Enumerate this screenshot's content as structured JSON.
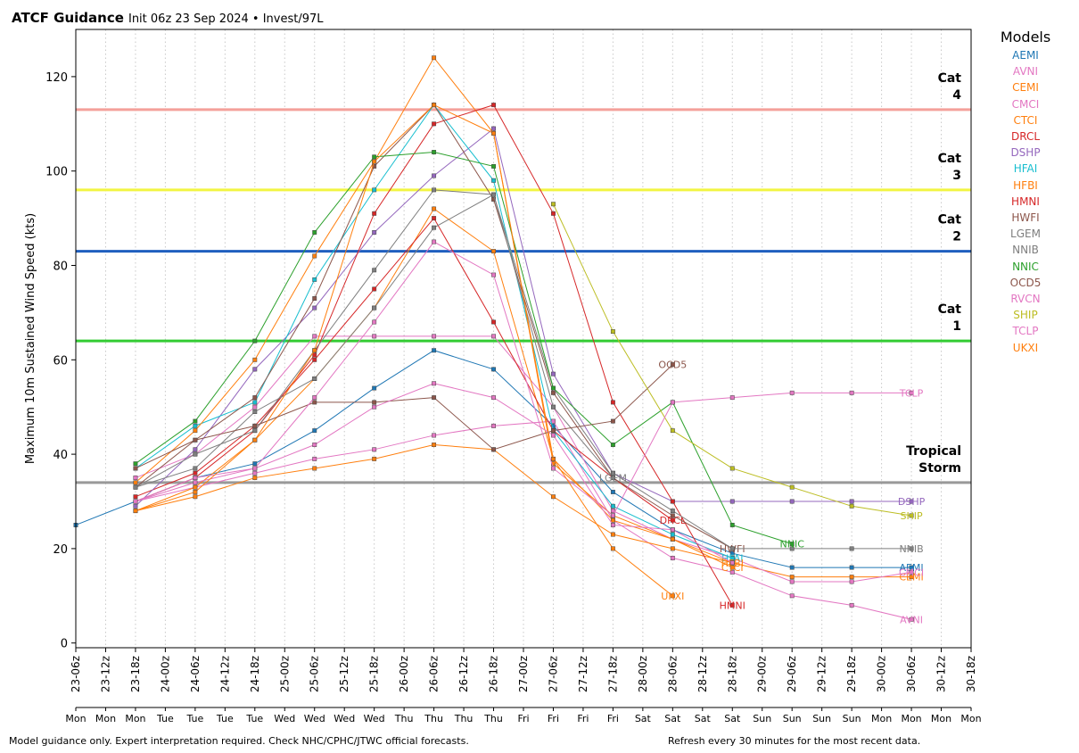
{
  "header": {
    "title": "ATCF Guidance",
    "subtitle": "Init 06z 23 Sep 2024 • Invest/97L"
  },
  "legend": {
    "title": "Models"
  },
  "footer": {
    "left": "Model guidance only. Expert interpretation required. Check NHC/CPHC/JTWC official forecasts.",
    "right": "Refresh every 30 minutes for the most recent data."
  },
  "chart_data": {
    "type": "line",
    "title": "ATCF Guidance",
    "ylabel": "Maximum 10m Sustained Wind Speed (kts)",
    "xlabel": "",
    "ylim": [
      -1,
      130
    ],
    "xlim": [
      "23-06z",
      "30-18z"
    ],
    "y_ticks": [
      0,
      20,
      40,
      60,
      80,
      100,
      120
    ],
    "x_ticks": [
      "23-06z",
      "23-12z",
      "23-18z",
      "24-00z",
      "24-06z",
      "24-12z",
      "24-18z",
      "25-00z",
      "25-06z",
      "25-12z",
      "25-18z",
      "26-00z",
      "26-06z",
      "26-12z",
      "26-18z",
      "27-00z",
      "27-06z",
      "27-12z",
      "27-18z",
      "28-00z",
      "28-06z",
      "28-12z",
      "28-18z",
      "29-00z",
      "29-06z",
      "29-12z",
      "29-18z",
      "30-00z",
      "30-06z",
      "30-12z",
      "30-18z"
    ],
    "day_labels": [
      "Mon",
      "Mon",
      "Mon",
      "Tue",
      "Tue",
      "Tue",
      "Tue",
      "Wed",
      "Wed",
      "Wed",
      "Wed",
      "Thu",
      "Thu",
      "Thu",
      "Thu",
      "Fri",
      "Fri",
      "Fri",
      "Fri",
      "Sat",
      "Sat",
      "Sat",
      "Sat",
      "Sun",
      "Sun",
      "Sun",
      "Sun",
      "Mon",
      "Mon",
      "Mon",
      "Mon"
    ],
    "grid": "vertical dotted",
    "legend_position": "right",
    "thresholds": [
      {
        "label": "Cat 4",
        "value": 113,
        "color": "#f4a09a"
      },
      {
        "label": "Cat 3",
        "value": 96,
        "color": "#f2f542"
      },
      {
        "label": "Cat 2",
        "value": 83,
        "color": "#1f5fbf"
      },
      {
        "label": "Cat 1",
        "value": 64,
        "color": "#33cc33"
      },
      {
        "label": "Tropical Storm",
        "value": 34,
        "color": "#999999"
      }
    ],
    "series": [
      {
        "name": "AEMI",
        "color": "#1f77b4",
        "points": [
          [
            0,
            25
          ],
          [
            2,
            30
          ],
          [
            4,
            35
          ],
          [
            6,
            38
          ],
          [
            8,
            45
          ],
          [
            10,
            54
          ],
          [
            12,
            62
          ],
          [
            14,
            58
          ],
          [
            16,
            46
          ],
          [
            18,
            32
          ],
          [
            20,
            24
          ],
          [
            22,
            19
          ],
          [
            24,
            16
          ],
          [
            26,
            16
          ],
          [
            28,
            16
          ]
        ],
        "end_label": "AEMI"
      },
      {
        "name": "AVNI",
        "color": "#e377c2",
        "points": [
          [
            2,
            30
          ],
          [
            4,
            33
          ],
          [
            6,
            36
          ],
          [
            8,
            39
          ],
          [
            10,
            41
          ],
          [
            12,
            44
          ],
          [
            14,
            46
          ],
          [
            16,
            47
          ],
          [
            18,
            26
          ],
          [
            20,
            18
          ],
          [
            22,
            15
          ],
          [
            24,
            10
          ],
          [
            26,
            8
          ],
          [
            28,
            5
          ]
        ],
        "end_label": "AVNI"
      },
      {
        "name": "CEMI",
        "color": "#ff7f0e",
        "points": [
          [
            2,
            28
          ],
          [
            4,
            31
          ],
          [
            6,
            35
          ],
          [
            8,
            37
          ],
          [
            10,
            39
          ],
          [
            12,
            42
          ],
          [
            14,
            41
          ],
          [
            16,
            31
          ],
          [
            18,
            23
          ],
          [
            20,
            20
          ],
          [
            22,
            17
          ],
          [
            24,
            14
          ],
          [
            26,
            14
          ],
          [
            28,
            14
          ]
        ],
        "end_label": "CEMI"
      },
      {
        "name": "CMCI",
        "color": "#e377c2",
        "points": [
          [
            2,
            35
          ],
          [
            4,
            40
          ],
          [
            6,
            50
          ],
          [
            8,
            65
          ],
          [
            10,
            65
          ],
          [
            12,
            65
          ],
          [
            14,
            65
          ],
          [
            16,
            50
          ],
          [
            18,
            28
          ],
          [
            20,
            22
          ],
          [
            22,
            18
          ],
          [
            24,
            13
          ],
          [
            26,
            13
          ],
          [
            28,
            15
          ]
        ],
        "end_label": "CMCI"
      },
      {
        "name": "CTCI",
        "color": "#ff7f0e",
        "points": [
          [
            2,
            28
          ],
          [
            4,
            33
          ],
          [
            6,
            43
          ],
          [
            8,
            56
          ],
          [
            10,
            71
          ],
          [
            12,
            92
          ],
          [
            14,
            83
          ],
          [
            16,
            39
          ],
          [
            18,
            26
          ],
          [
            20,
            22
          ],
          [
            22,
            16
          ]
        ],
        "end_label": "CTCI"
      },
      {
        "name": "DRCL",
        "color": "#d62728",
        "points": [
          [
            2,
            31
          ],
          [
            4,
            36
          ],
          [
            6,
            46
          ],
          [
            8,
            60
          ],
          [
            10,
            75
          ],
          [
            12,
            90
          ],
          [
            14,
            68
          ],
          [
            16,
            45
          ],
          [
            18,
            35
          ],
          [
            20,
            26
          ]
        ],
        "end_label": "DRCL"
      },
      {
        "name": "DSHP",
        "color": "#9467bd",
        "points": [
          [
            2,
            29
          ],
          [
            4,
            41
          ],
          [
            6,
            58
          ],
          [
            8,
            71
          ],
          [
            10,
            87
          ],
          [
            12,
            99
          ],
          [
            14,
            109
          ],
          [
            16,
            57
          ],
          [
            18,
            36
          ],
          [
            20,
            30
          ],
          [
            22,
            30
          ],
          [
            24,
            30
          ],
          [
            26,
            30
          ],
          [
            28,
            30
          ]
        ],
        "end_label": "DSHP"
      },
      {
        "name": "HFAI",
        "color": "#17becf",
        "points": [
          [
            2,
            37
          ],
          [
            4,
            46
          ],
          [
            6,
            51
          ],
          [
            8,
            77
          ],
          [
            10,
            96
          ],
          [
            12,
            114
          ],
          [
            14,
            98
          ],
          [
            16,
            45
          ],
          [
            18,
            29
          ],
          [
            20,
            23
          ],
          [
            22,
            18
          ]
        ],
        "end_label": "HFAI"
      },
      {
        "name": "HFBI",
        "color": "#ff7f0e",
        "points": [
          [
            2,
            34
          ],
          [
            4,
            45
          ],
          [
            6,
            60
          ],
          [
            8,
            82
          ],
          [
            10,
            102
          ],
          [
            12,
            124
          ],
          [
            14,
            108
          ],
          [
            16,
            38
          ],
          [
            18,
            27
          ],
          [
            20,
            22
          ],
          [
            22,
            17
          ]
        ],
        "end_label": "HFBI"
      },
      {
        "name": "HMNI",
        "color": "#d62728",
        "points": [
          [
            2,
            30
          ],
          [
            4,
            35
          ],
          [
            6,
            45
          ],
          [
            8,
            61
          ],
          [
            10,
            91
          ],
          [
            12,
            110
          ],
          [
            14,
            114
          ],
          [
            16,
            91
          ],
          [
            18,
            51
          ],
          [
            20,
            30
          ],
          [
            22,
            8
          ]
        ],
        "end_label": "HMNI"
      },
      {
        "name": "HWFI",
        "color": "#8c564b",
        "points": [
          [
            2,
            33
          ],
          [
            4,
            43
          ],
          [
            6,
            52
          ],
          [
            8,
            73
          ],
          [
            10,
            101
          ],
          [
            12,
            114
          ],
          [
            14,
            94
          ],
          [
            16,
            53
          ],
          [
            18,
            35
          ],
          [
            20,
            27
          ],
          [
            22,
            20
          ]
        ],
        "end_label": "HWFI"
      },
      {
        "name": "LGEM",
        "color": "#7f7f7f",
        "points": [
          [
            2,
            33
          ],
          [
            4,
            37
          ],
          [
            6,
            49
          ],
          [
            8,
            56
          ],
          [
            10,
            71
          ],
          [
            12,
            88
          ],
          [
            14,
            95
          ],
          [
            16,
            50
          ],
          [
            18,
            35
          ]
        ],
        "end_label": "LGEM"
      },
      {
        "name": "NNIB",
        "color": "#7f7f7f",
        "points": [
          [
            2,
            33
          ],
          [
            4,
            40
          ],
          [
            6,
            45
          ],
          [
            8,
            62
          ],
          [
            10,
            79
          ],
          [
            12,
            96
          ],
          [
            14,
            95
          ],
          [
            16,
            54
          ],
          [
            18,
            36
          ],
          [
            20,
            28
          ],
          [
            22,
            20
          ],
          [
            24,
            20
          ],
          [
            26,
            20
          ],
          [
            28,
            20
          ]
        ],
        "end_label": "NNIB"
      },
      {
        "name": "NNIC",
        "color": "#2ca02c",
        "points": [
          [
            2,
            38
          ],
          [
            4,
            47
          ],
          [
            6,
            64
          ],
          [
            8,
            87
          ],
          [
            10,
            103
          ],
          [
            12,
            104
          ],
          [
            14,
            101
          ],
          [
            16,
            54
          ],
          [
            18,
            42
          ],
          [
            20,
            51
          ],
          [
            22,
            25
          ],
          [
            24,
            21
          ]
        ],
        "end_label": "NNIC"
      },
      {
        "name": "OCD5",
        "color": "#8c564b",
        "points": [
          [
            2,
            37
          ],
          [
            4,
            43
          ],
          [
            6,
            46
          ],
          [
            8,
            51
          ],
          [
            10,
            51
          ],
          [
            12,
            52
          ],
          [
            14,
            41
          ],
          [
            16,
            45
          ],
          [
            18,
            47
          ],
          [
            20,
            59
          ]
        ],
        "end_label": "OCD5"
      },
      {
        "name": "RVCN",
        "color": "#e377c2",
        "points": [
          [
            2,
            30
          ],
          [
            4,
            35
          ],
          [
            6,
            37
          ],
          [
            8,
            42
          ],
          [
            10,
            50
          ],
          [
            12,
            55
          ],
          [
            14,
            52
          ],
          [
            16,
            44
          ],
          [
            18,
            25
          ],
          [
            20,
            24
          ],
          [
            22,
            17
          ]
        ],
        "end_label": ""
      },
      {
        "name": "SHIP",
        "color": "#bcbd22",
        "points": [
          [
            16,
            93
          ],
          [
            18,
            66
          ],
          [
            20,
            45
          ],
          [
            22,
            37
          ],
          [
            24,
            33
          ],
          [
            26,
            29
          ],
          [
            28,
            27
          ]
        ],
        "end_label": "SHIP"
      },
      {
        "name": "TCLP",
        "color": "#e377c2",
        "points": [
          [
            2,
            30
          ],
          [
            4,
            34
          ],
          [
            6,
            37
          ],
          [
            8,
            52
          ],
          [
            10,
            68
          ],
          [
            12,
            85
          ],
          [
            14,
            78
          ],
          [
            16,
            37
          ],
          [
            18,
            27
          ],
          [
            20,
            51
          ],
          [
            22,
            52
          ],
          [
            24,
            53
          ],
          [
            26,
            53
          ],
          [
            28,
            53
          ]
        ],
        "end_label": "TCLP"
      },
      {
        "name": "UKXI",
        "color": "#ff7f0e",
        "points": [
          [
            2,
            28
          ],
          [
            4,
            32
          ],
          [
            6,
            43
          ],
          [
            8,
            62
          ],
          [
            10,
            102
          ],
          [
            12,
            114
          ],
          [
            14,
            108
          ],
          [
            16,
            39
          ],
          [
            18,
            20
          ],
          [
            20,
            10
          ]
        ],
        "end_label": "UKXI"
      }
    ]
  }
}
